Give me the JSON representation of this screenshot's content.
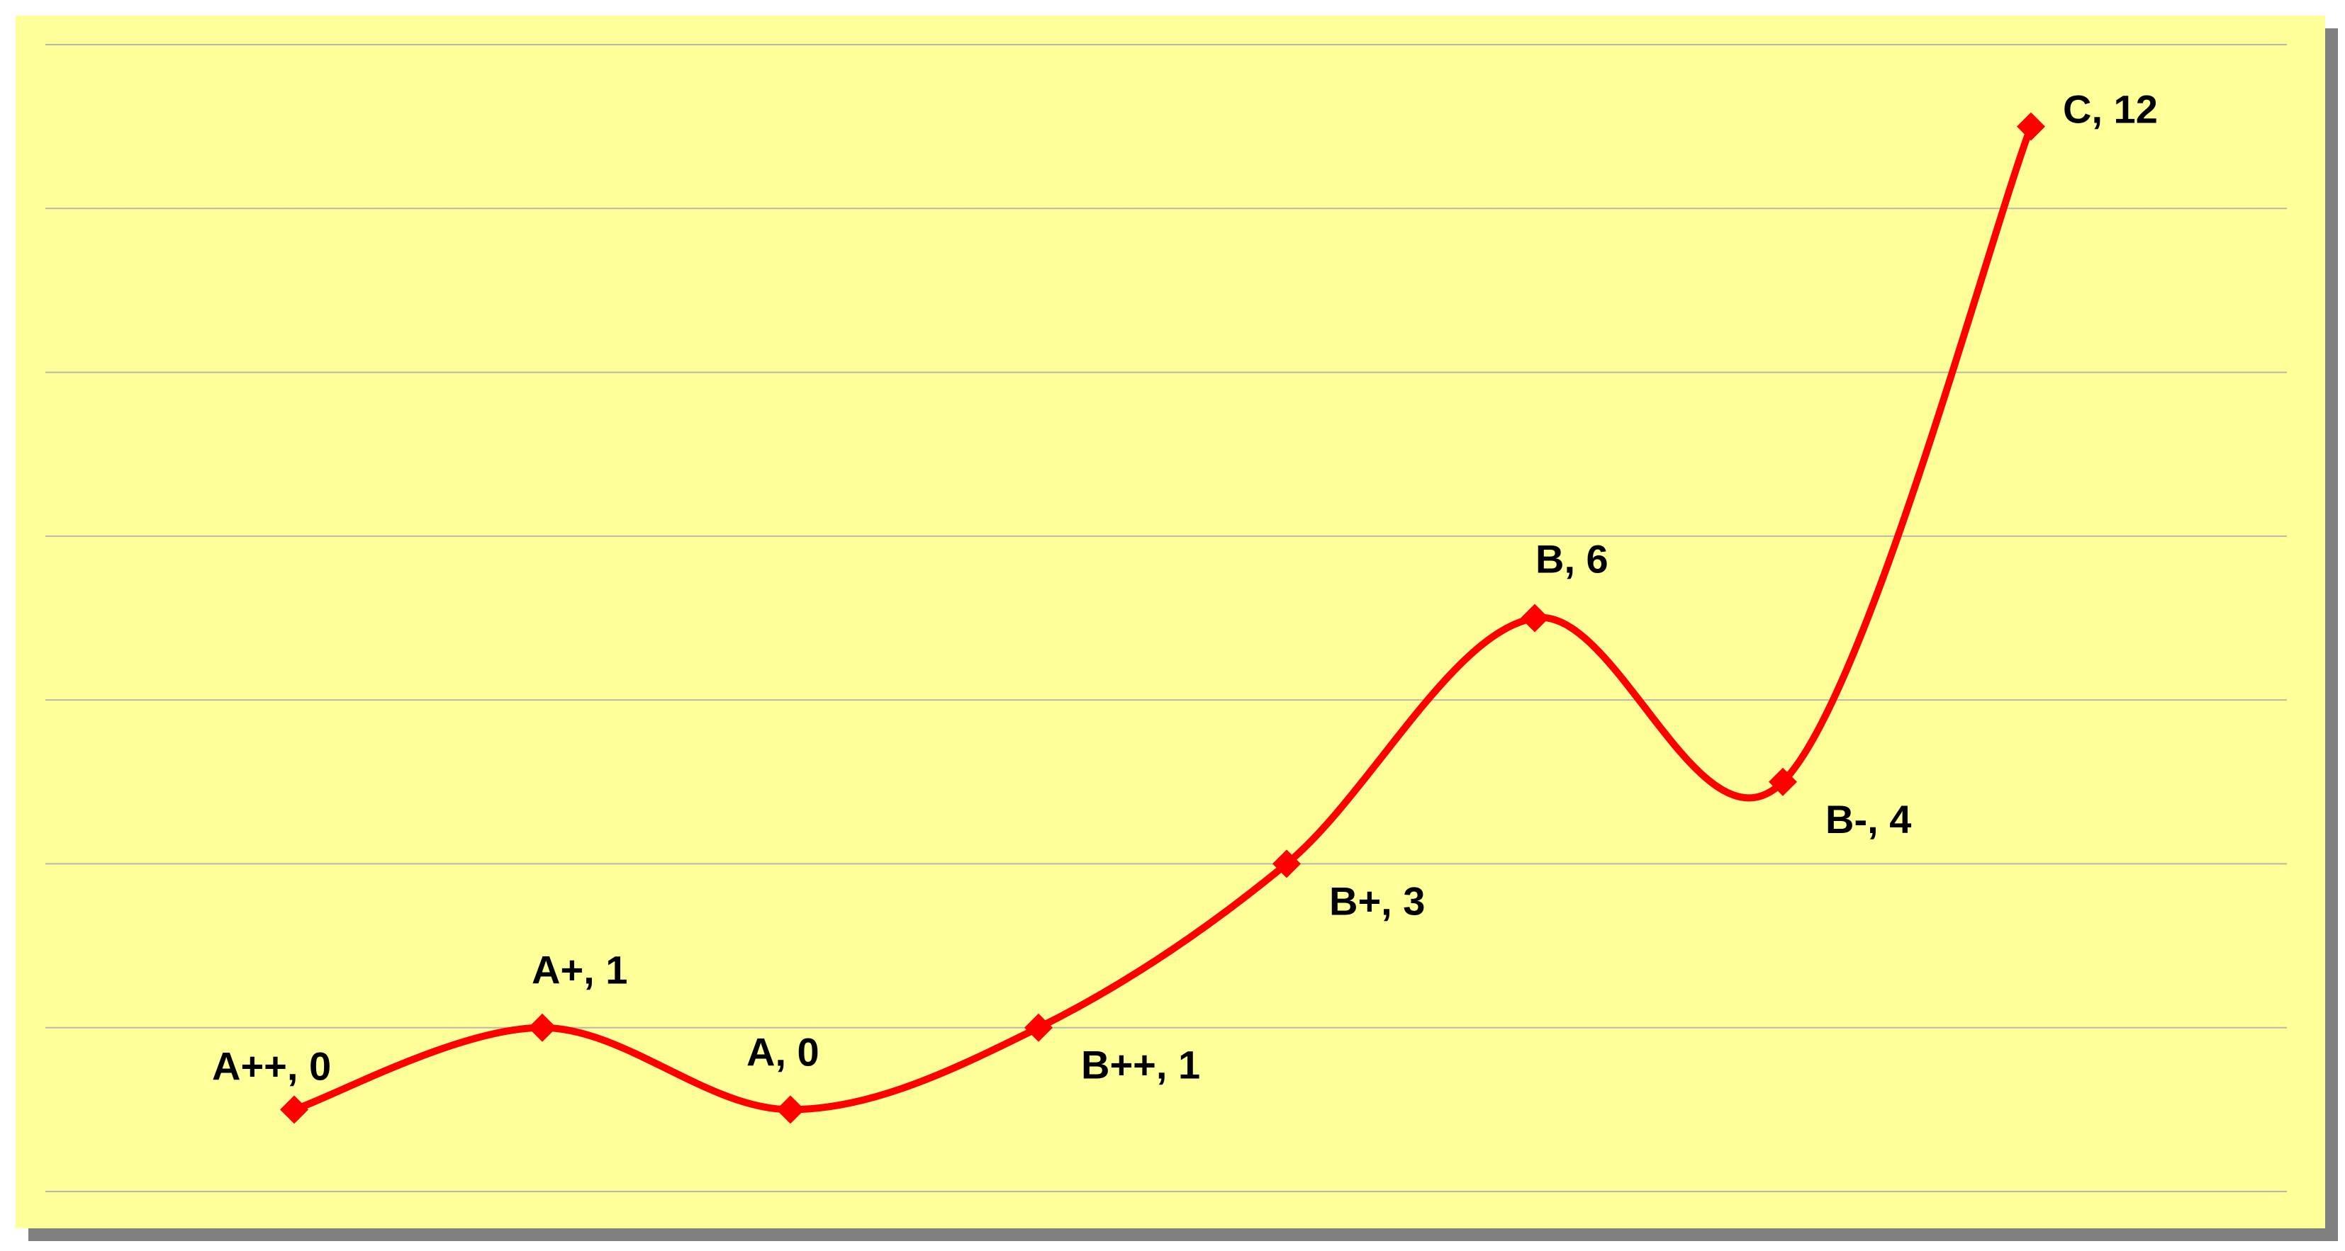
{
  "chart_data": {
    "type": "line",
    "categories": [
      "A++",
      "A+",
      "A",
      "B++",
      "B+",
      "B",
      "B-",
      "C"
    ],
    "values": [
      0,
      1,
      0,
      1,
      3,
      6,
      4,
      12
    ],
    "ylim": [
      -1,
      13
    ],
    "gridlines": [
      -1,
      1,
      3,
      5,
      7,
      9,
      11,
      13
    ],
    "grid": true,
    "smooth": true,
    "marker": "diamond",
    "labels": [
      "A++, 0",
      "A+, 1",
      "A, 0",
      "B++, 1",
      "B+, 3",
      "B, 6",
      "B-, 4",
      "C, 12"
    ],
    "label_sides": [
      "above-left",
      "above",
      "above",
      "below-right",
      "below-right",
      "above",
      "below-right",
      "above-right"
    ],
    "colors": {
      "series": "#ff0000",
      "plot_background": "#ffff99",
      "shadow": "#808080",
      "gridline": "#b8b8a8"
    }
  }
}
